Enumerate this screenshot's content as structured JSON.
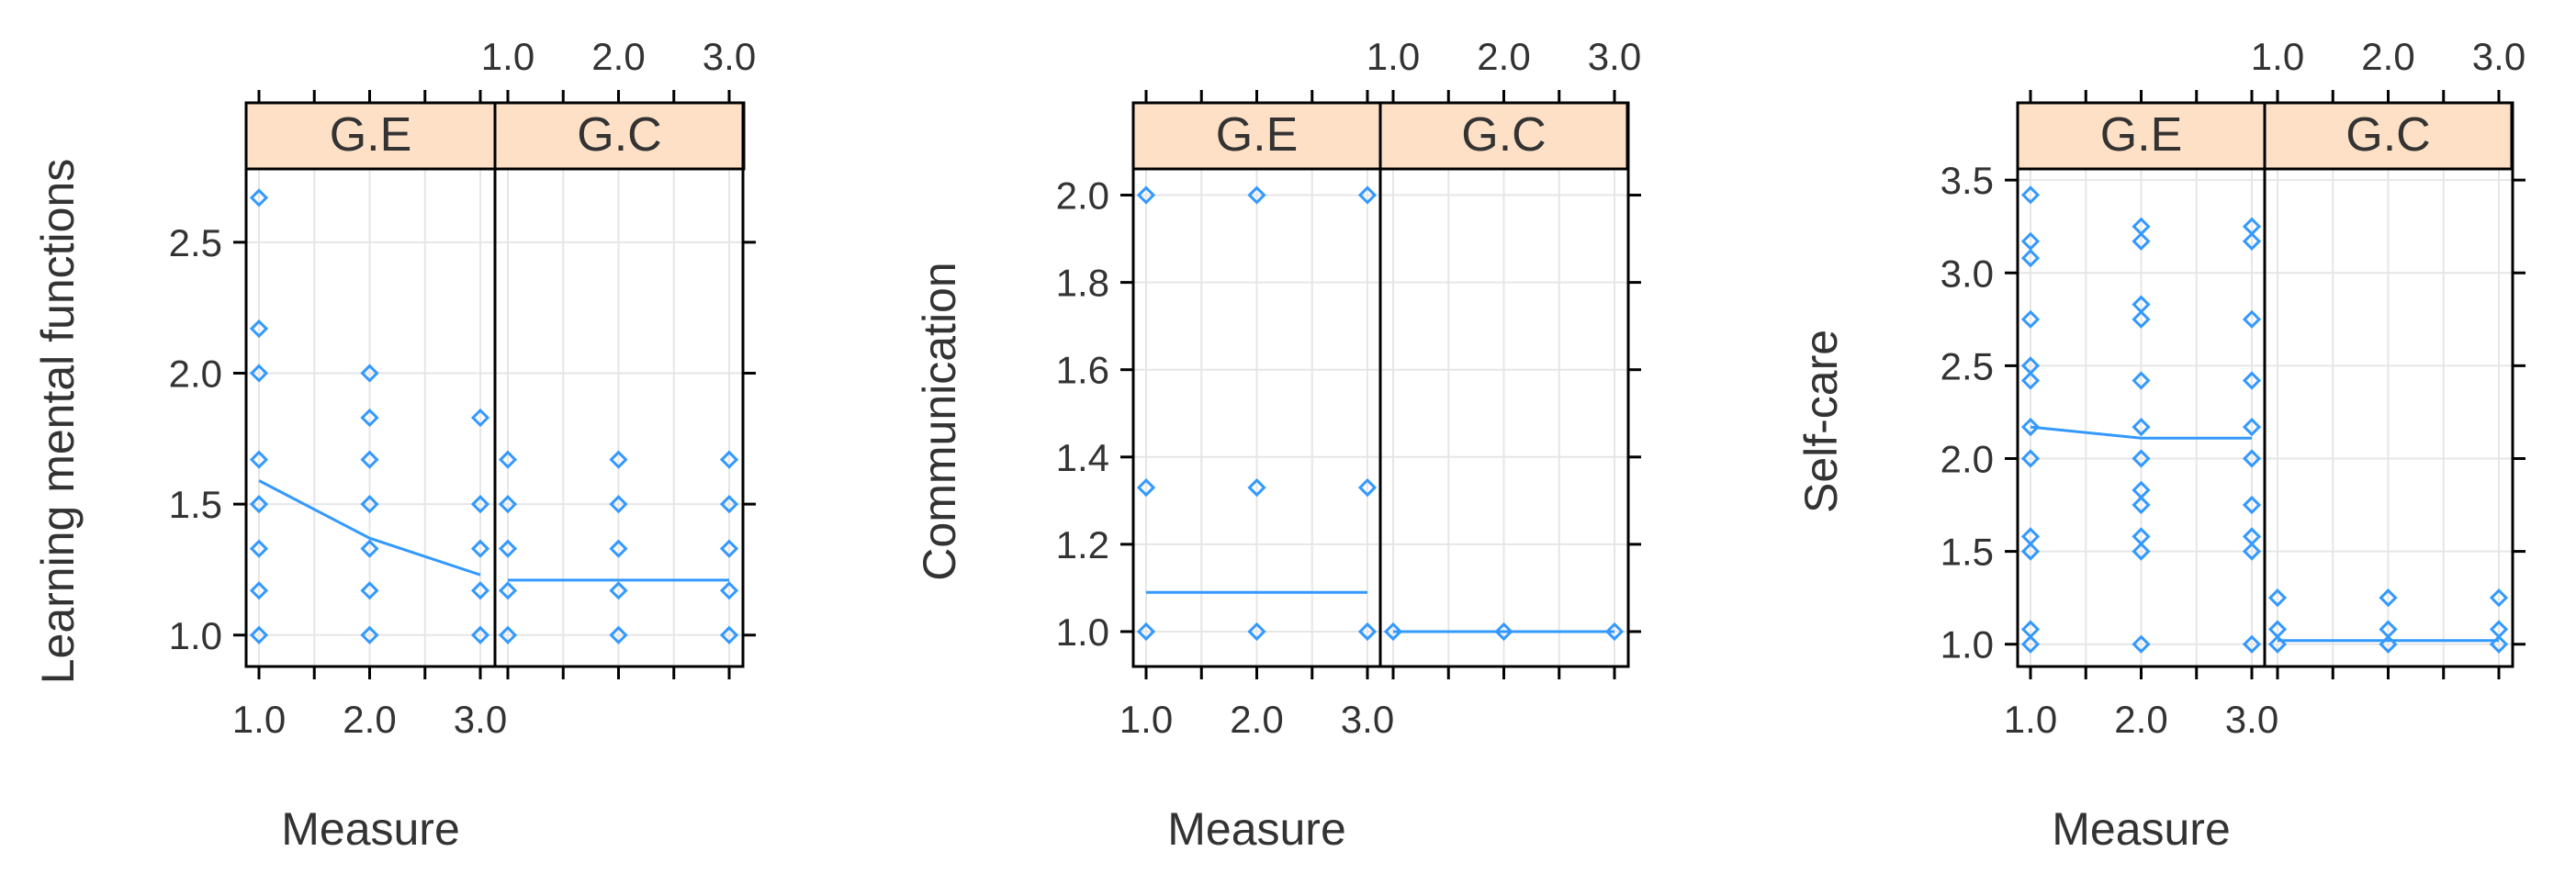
{
  "style": {
    "point_color": "#3399ff",
    "strip_color": "#fde0c5",
    "grid_color": "#e6e6e6"
  },
  "chart_data": [
    {
      "type": "scatter",
      "ylabel": "Learning mental functions",
      "xlabel": "Measure",
      "panels": [
        "G.E",
        "G.C"
      ],
      "xticks": [
        1.0,
        2.0,
        3.0
      ],
      "xtick_labels": [
        "1.0",
        "2.0",
        "3.0"
      ],
      "yticks": [
        1.0,
        1.5,
        2.0,
        2.5
      ],
      "ytick_labels": [
        "1.0",
        "1.5",
        "2.0",
        "2.5"
      ],
      "ylim": [
        0.88,
        2.78
      ],
      "grid": true,
      "series": [
        {
          "panel": "G.E",
          "points": [
            [
              1,
              2.67
            ],
            [
              1,
              2.17
            ],
            [
              1,
              2.0
            ],
            [
              1,
              1.67
            ],
            [
              1,
              1.5
            ],
            [
              1,
              1.33
            ],
            [
              1,
              1.17
            ],
            [
              1,
              1.0
            ],
            [
              2,
              2.0
            ],
            [
              2,
              1.83
            ],
            [
              2,
              1.67
            ],
            [
              2,
              1.5
            ],
            [
              2,
              1.33
            ],
            [
              2,
              1.17
            ],
            [
              2,
              1.0
            ],
            [
              3,
              1.83
            ],
            [
              3,
              1.5
            ],
            [
              3,
              1.33
            ],
            [
              3,
              1.17
            ],
            [
              3,
              1.0
            ]
          ],
          "fit": [
            [
              1,
              1.59
            ],
            [
              2,
              1.37
            ],
            [
              3,
              1.23
            ]
          ]
        },
        {
          "panel": "G.C",
          "points": [
            [
              1,
              1.67
            ],
            [
              1,
              1.5
            ],
            [
              1,
              1.33
            ],
            [
              1,
              1.17
            ],
            [
              1,
              1.0
            ],
            [
              2,
              1.67
            ],
            [
              2,
              1.5
            ],
            [
              2,
              1.33
            ],
            [
              2,
              1.17
            ],
            [
              2,
              1.0
            ],
            [
              3,
              1.67
            ],
            [
              3,
              1.5
            ],
            [
              3,
              1.33
            ],
            [
              3,
              1.17
            ],
            [
              3,
              1.0
            ]
          ],
          "fit": [
            [
              1,
              1.21
            ],
            [
              2,
              1.21
            ],
            [
              3,
              1.21
            ]
          ]
        }
      ]
    },
    {
      "type": "scatter",
      "ylabel": "Communication",
      "xlabel": "Measure",
      "panels": [
        "G.E",
        "G.C"
      ],
      "xticks": [
        1.0,
        2.0,
        3.0
      ],
      "xtick_labels": [
        "1.0",
        "2.0",
        "3.0"
      ],
      "yticks": [
        1.0,
        1.2,
        1.4,
        1.6,
        1.8,
        2.0
      ],
      "ytick_labels": [
        "1.0",
        "1.2",
        "1.4",
        "1.6",
        "1.8",
        "2.0"
      ],
      "ylim": [
        0.92,
        2.06
      ],
      "grid": true,
      "series": [
        {
          "panel": "G.E",
          "points": [
            [
              1,
              2.0
            ],
            [
              1,
              1.33
            ],
            [
              1,
              1.0
            ],
            [
              2,
              2.0
            ],
            [
              2,
              1.33
            ],
            [
              2,
              1.0
            ],
            [
              3,
              2.0
            ],
            [
              3,
              1.33
            ],
            [
              3,
              1.0
            ]
          ],
          "fit": [
            [
              1,
              1.09
            ],
            [
              2,
              1.09
            ],
            [
              3,
              1.09
            ]
          ]
        },
        {
          "panel": "G.C",
          "points": [
            [
              1,
              1.0
            ],
            [
              2,
              1.0
            ],
            [
              3,
              1.0
            ]
          ],
          "fit": [
            [
              1,
              1.0
            ],
            [
              2,
              1.0
            ],
            [
              3,
              1.0
            ]
          ]
        }
      ]
    },
    {
      "type": "scatter",
      "ylabel": "Self-care",
      "xlabel": "Measure",
      "panels": [
        "G.E",
        "G.C"
      ],
      "xticks": [
        1.0,
        2.0,
        3.0
      ],
      "xtick_labels": [
        "1.0",
        "2.0",
        "3.0"
      ],
      "yticks": [
        1.0,
        1.5,
        2.0,
        2.5,
        3.0,
        3.5
      ],
      "ytick_labels": [
        "1.0",
        "1.5",
        "2.0",
        "2.5",
        "3.0",
        "3.5"
      ],
      "ylim": [
        0.88,
        3.56
      ],
      "grid": true,
      "series": [
        {
          "panel": "G.E",
          "points": [
            [
              1,
              3.42
            ],
            [
              1,
              3.17
            ],
            [
              1,
              3.08
            ],
            [
              1,
              2.75
            ],
            [
              1,
              2.5
            ],
            [
              1,
              2.42
            ],
            [
              1,
              2.17
            ],
            [
              1,
              2.0
            ],
            [
              1,
              1.58
            ],
            [
              1,
              1.5
            ],
            [
              1,
              1.08
            ],
            [
              1,
              1.0
            ],
            [
              2,
              3.25
            ],
            [
              2,
              3.17
            ],
            [
              2,
              2.83
            ],
            [
              2,
              2.75
            ],
            [
              2,
              2.42
            ],
            [
              2,
              2.17
            ],
            [
              2,
              2.0
            ],
            [
              2,
              1.83
            ],
            [
              2,
              1.75
            ],
            [
              2,
              1.58
            ],
            [
              2,
              1.5
            ],
            [
              2,
              1.0
            ],
            [
              3,
              3.25
            ],
            [
              3,
              3.17
            ],
            [
              3,
              2.75
            ],
            [
              3,
              2.42
            ],
            [
              3,
              2.17
            ],
            [
              3,
              2.0
            ],
            [
              3,
              1.75
            ],
            [
              3,
              1.58
            ],
            [
              3,
              1.5
            ],
            [
              3,
              1.0
            ]
          ],
          "fit": [
            [
              1,
              2.17
            ],
            [
              2,
              2.11
            ],
            [
              3,
              2.11
            ]
          ]
        },
        {
          "panel": "G.C",
          "points": [
            [
              1,
              1.25
            ],
            [
              1,
              1.08
            ],
            [
              1,
              1.0
            ],
            [
              2,
              1.25
            ],
            [
              2,
              1.08
            ],
            [
              2,
              1.0
            ],
            [
              3,
              1.25
            ],
            [
              3,
              1.08
            ],
            [
              3,
              1.0
            ]
          ],
          "fit": [
            [
              1,
              1.02
            ],
            [
              2,
              1.02
            ],
            [
              3,
              1.02
            ]
          ]
        }
      ]
    }
  ]
}
